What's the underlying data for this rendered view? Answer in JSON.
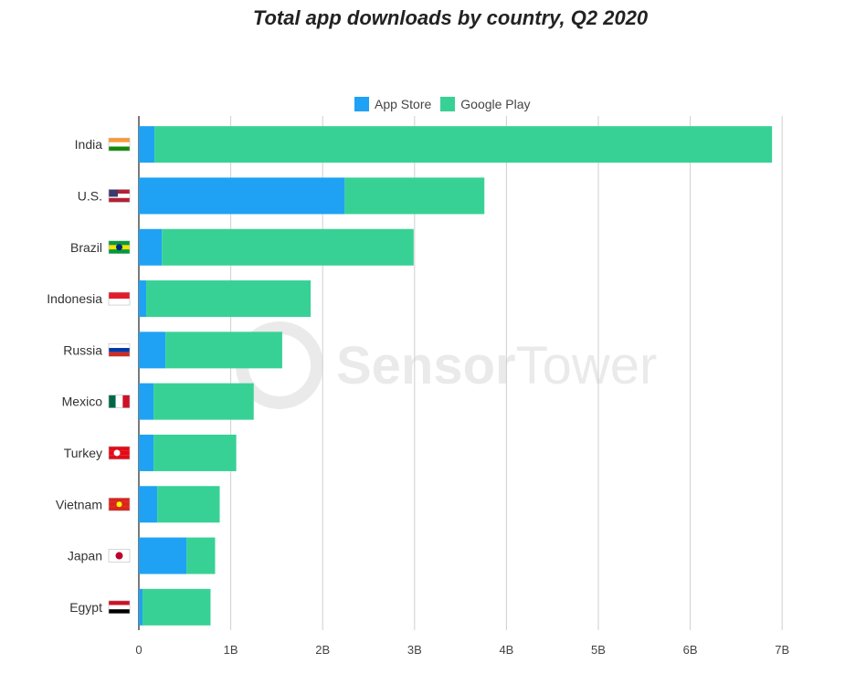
{
  "chart_data": {
    "type": "bar",
    "orientation": "horizontal",
    "stacked": true,
    "title": "Total app downloads by country, Q2 2020",
    "categories": [
      "India",
      "U.S.",
      "Brazil",
      "Indonesia",
      "Russia",
      "Mexico",
      "Turkey",
      "Vietnam",
      "Japan",
      "Egypt"
    ],
    "series": [
      {
        "name": "App Store",
        "color": "#1fa2f3",
        "values": [
          0.17,
          2.24,
          0.25,
          0.08,
          0.29,
          0.16,
          0.16,
          0.2,
          0.52,
          0.04
        ]
      },
      {
        "name": "Google Play",
        "color": "#38d195",
        "values": [
          6.72,
          1.52,
          2.74,
          1.79,
          1.27,
          1.09,
          0.9,
          0.68,
          0.31,
          0.74
        ]
      }
    ],
    "xlim": [
      0,
      7
    ],
    "x_ticks": [
      "0",
      "1B",
      "2B",
      "3B",
      "4B",
      "5B",
      "6B",
      "7B"
    ],
    "legend_position": "top",
    "grid": "vertical",
    "watermark": "SensorTower"
  }
}
